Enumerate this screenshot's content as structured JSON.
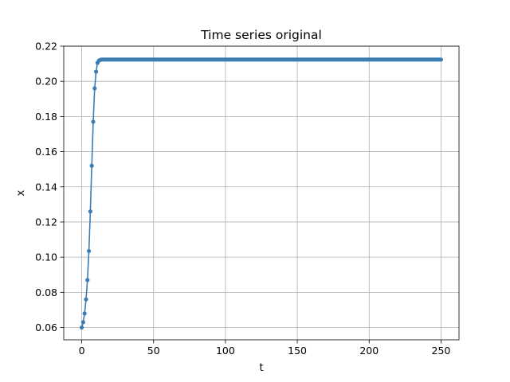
{
  "chart_data": {
    "type": "line",
    "title": "Time series original",
    "xlabel": "t",
    "ylabel": "x",
    "xlim": [
      -12.5,
      262.5
    ],
    "ylim": [
      0.053,
      0.22
    ],
    "xticks": [
      0,
      50,
      100,
      150,
      200,
      250
    ],
    "yticks": [
      0.06,
      0.08,
      0.1,
      0.12,
      0.14,
      0.16,
      0.18,
      0.2,
      0.22
    ],
    "ytick_labels": [
      "0.06",
      "0.08",
      "0.10",
      "0.12",
      "0.14",
      "0.16",
      "0.18",
      "0.20",
      "0.22"
    ],
    "grid": true,
    "line_color": "#3d7db3",
    "marker": "circle",
    "series": [
      {
        "x_start": 0,
        "x_end": 250,
        "x_step": 1,
        "values_initial": [
          0.06,
          0.063,
          0.068,
          0.076,
          0.087,
          0.1035,
          0.126,
          0.152,
          0.177,
          0.196,
          0.2055,
          0.2105,
          0.2118,
          0.2122
        ],
        "steady_value": 0.2124
      }
    ]
  }
}
